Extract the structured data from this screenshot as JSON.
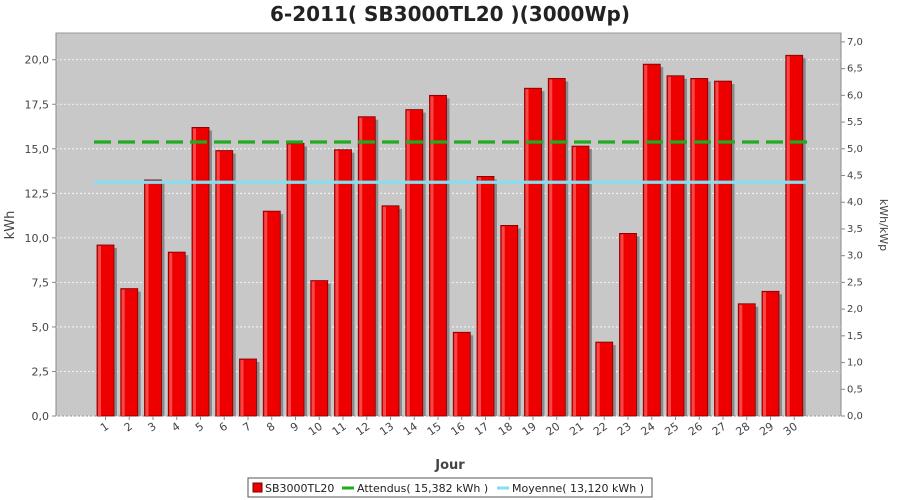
{
  "chart_data": {
    "type": "bar",
    "title": "6-2011( SB3000TL20 )(3000Wp)",
    "xlabel": "Jour",
    "ylabel": "kWh",
    "y2label": "kWh/kWp",
    "ylim": [
      0,
      21.5
    ],
    "y2lim": [
      0,
      7.1667
    ],
    "yticks": [
      "0,0",
      "2,5",
      "5,0",
      "7,5",
      "10,0",
      "12,5",
      "15,0",
      "17,5",
      "20,0"
    ],
    "y2ticks": [
      "0,0",
      "0,5",
      "1,0",
      "1,5",
      "2,0",
      "2,5",
      "3,0",
      "3,5",
      "4,0",
      "4,5",
      "5,0",
      "5,5",
      "6,0",
      "6,5",
      "7,0"
    ],
    "categories": [
      "1",
      "2",
      "3",
      "4",
      "5",
      "6",
      "7",
      "8",
      "9",
      "10",
      "11",
      "12",
      "13",
      "14",
      "15",
      "16",
      "17",
      "18",
      "19",
      "20",
      "21",
      "22",
      "23",
      "24",
      "25",
      "26",
      "27",
      "28",
      "29",
      "30"
    ],
    "series": [
      {
        "name": "SB3000TL20",
        "values": [
          9.6,
          7.15,
          13.25,
          9.2,
          16.2,
          14.9,
          3.2,
          11.5,
          15.3,
          7.6,
          14.95,
          16.8,
          11.8,
          17.2,
          18.0,
          4.7,
          13.45,
          10.7,
          18.4,
          18.95,
          15.15,
          4.15,
          10.25,
          19.75,
          19.1,
          18.95,
          18.8,
          6.3,
          7.0,
          20.25
        ],
        "color": "#ee0000"
      }
    ],
    "reference_lines": [
      {
        "name": "Attendus( 15,382 kWh )",
        "value": 15.382,
        "color": "#22aa22"
      },
      {
        "name": "Moyenne( 13,120 kWh )",
        "value": 13.12,
        "color": "#88ddee"
      }
    ],
    "grid": true,
    "legend_position": "bottom"
  }
}
